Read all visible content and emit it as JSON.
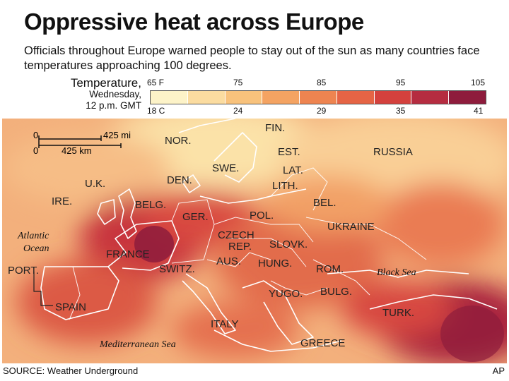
{
  "title": "Oppressive heat across Europe",
  "subtitle": "Officials throughout Europe warned people to stay out of the sun as many countries face temperatures approaching 100 degrees.",
  "legend": {
    "label_line1": "Temperature,",
    "label_line2": "Wednesday,",
    "label_line3": "12 p.m. GMT",
    "fahrenheit_ticks": [
      "65 F",
      "75",
      "85",
      "95",
      "105"
    ],
    "celsius_ticks": [
      "18 C",
      "24",
      "29",
      "35",
      "41"
    ],
    "colors": [
      "#fdf3c8",
      "#fbdca0",
      "#f8c27c",
      "#f4a362",
      "#ee8450",
      "#e56445",
      "#d4413d",
      "#b52c40",
      "#8e1c3c"
    ]
  },
  "scale_bar": {
    "top_left": "0",
    "top_right": "425 mi",
    "bottom_left": "0",
    "bottom_right": "425 km"
  },
  "countries": {
    "fin": "FIN.",
    "nor": "NOR.",
    "russia": "RUSSIA",
    "est": "EST.",
    "swe": "SWE.",
    "lat": "LAT.",
    "den": "DEN.",
    "lith": "LITH.",
    "uk": "U.K.",
    "ire": "IRE.",
    "belg": "BELG.",
    "bel": "BEL.",
    "ger": "GER.",
    "pol": "POL.",
    "ukraine": "UKRAINE",
    "czech_1": "CZECH",
    "czech_2": "REP.",
    "slovk": "SLOVK.",
    "france": "FRANCE",
    "switz": "SWITZ.",
    "aus": "AUS.",
    "hung": "HUNG.",
    "rom": "ROM.",
    "port": "PORT.",
    "yugo": "YUGO.",
    "bulg": "BULG.",
    "spain": "SPAIN",
    "turk": "TURK.",
    "italy": "ITALY",
    "greece": "GREECE"
  },
  "seas": {
    "atlantic_1": "Atlantic",
    "atlantic_2": "Ocean",
    "black_sea": "Black Sea",
    "mediterranean": "Mediterranean Sea"
  },
  "source": "SOURCE: Weather Underground",
  "credit": "AP"
}
